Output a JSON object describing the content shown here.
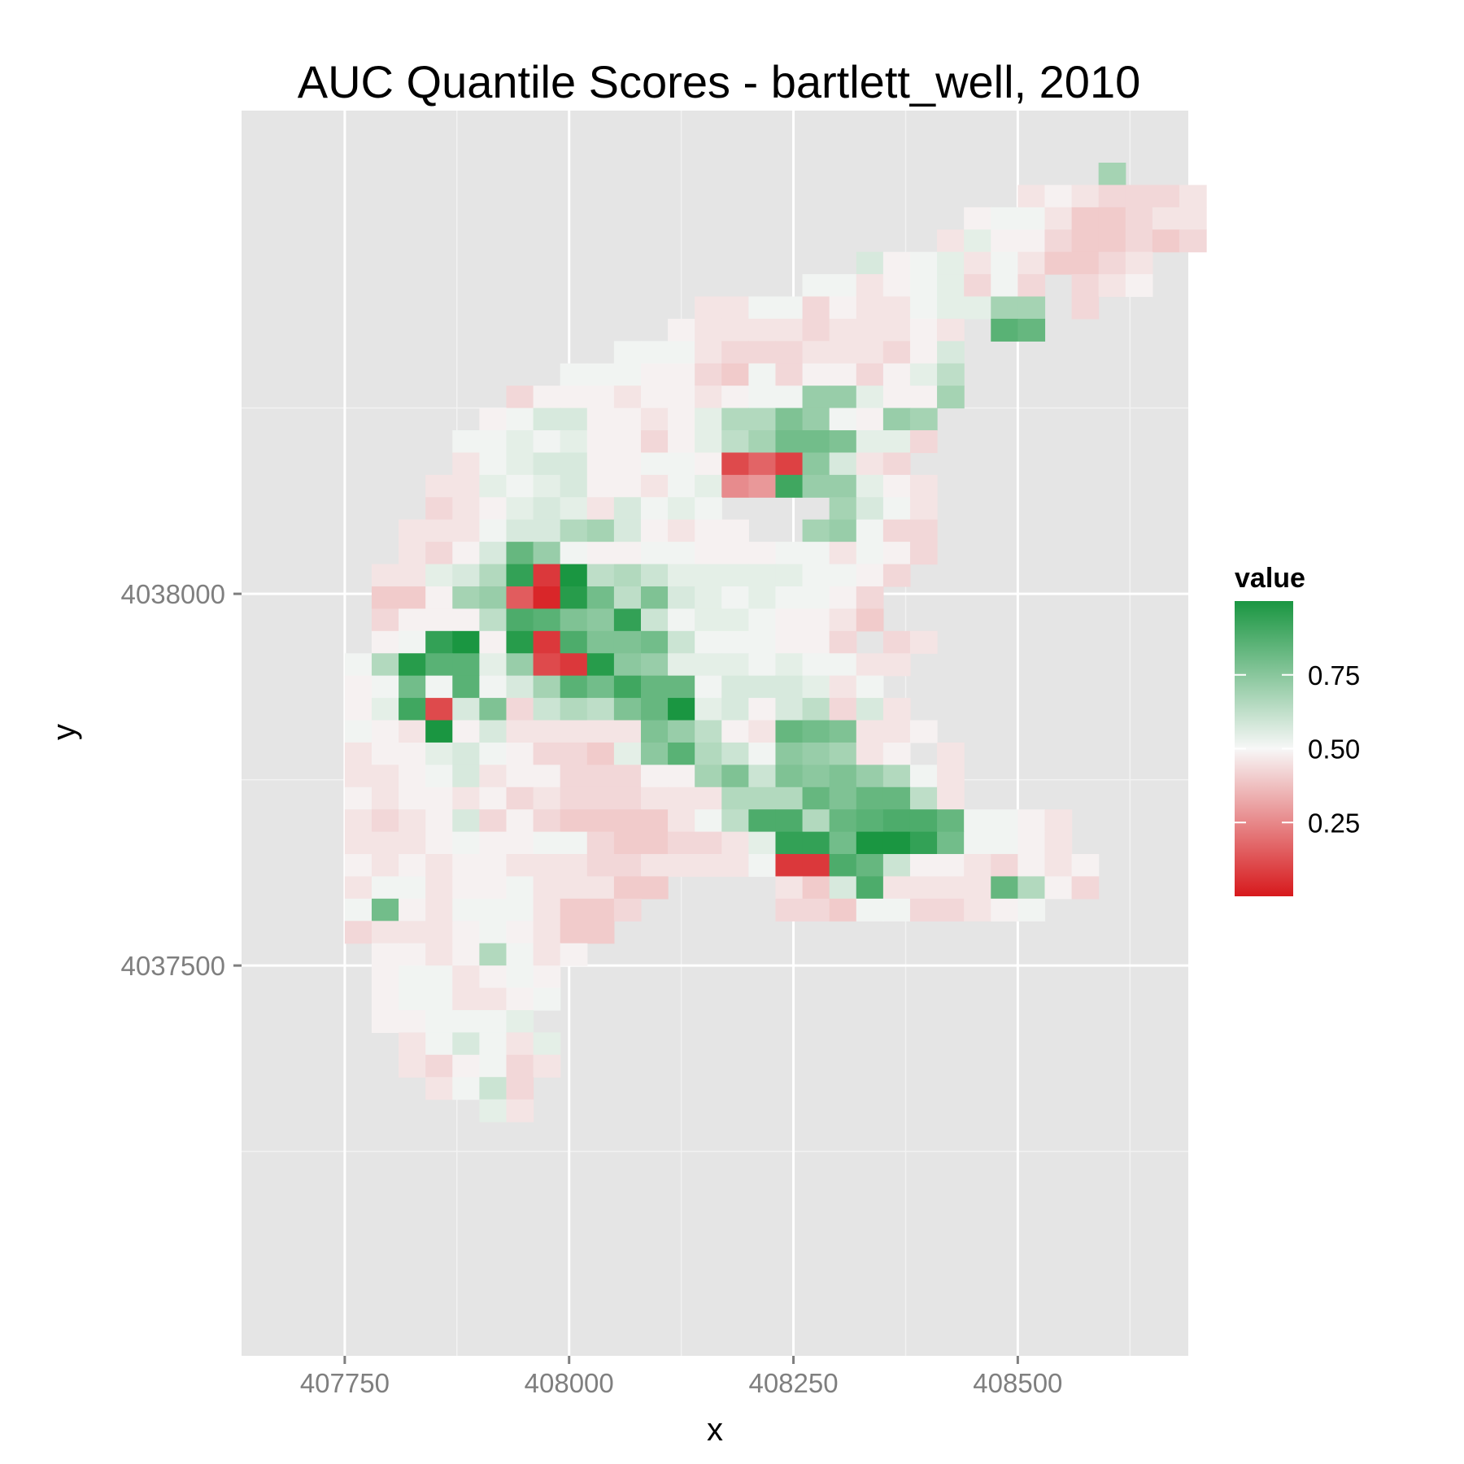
{
  "chart_data": {
    "type": "heatmap",
    "title": "AUC Quantile Scores - bartlett_well, 2010",
    "xlabel": "x",
    "ylabel": "y",
    "xlim": [
      407635,
      408690
    ],
    "ylim": [
      4036975,
      4038650
    ],
    "x_ticks": [
      407750,
      408000,
      408250,
      408500
    ],
    "x_tick_labels": [
      "407750",
      "408000",
      "408250",
      "408500"
    ],
    "x_minor": [
      407875,
      408125,
      408375,
      408625
    ],
    "y_ticks": [
      4037500,
      4038000
    ],
    "y_tick_labels": [
      "4037500",
      "4038000"
    ],
    "y_minor": [
      4037250,
      4037750,
      4038250
    ],
    "grid": true,
    "cell_size": 30,
    "x0": 407705,
    "y0": 4038565,
    "legend": {
      "title": "value",
      "position": "right",
      "breaks": [
        0.75,
        0.5,
        0.25
      ],
      "break_labels": [
        "0.75",
        "0.50",
        "0.25"
      ],
      "range": [
        0,
        1
      ]
    },
    "colors": {
      "low": "#d7191c",
      "mid": "#f7f7f7",
      "high": "#1a9641",
      "panel": "#e5e5e5",
      "grid": "#ffffff"
    },
    "grid_rows": [
      "..............................O......",
      "...........................GHGFFFG...",
      ".........................HIIGEEFGG...",
      "........................GJHHFEEFEF...",
      ".....................KHIJGIGEEFG.....",
      "...................IIGHIJFIF.FGH.....",
      "...............GGIIFHGGIJJOO.F.......",
      "..............HGGGGFGGGHG.UT.........",
      "............IIIGFFFGGGFHK............",
      "..........IIIHHFEIFHHFHJM............",
      "........FHHHGHHGHIIPPJHHO............",
      ".......HIKKHHGHJNNRPIHPO.............",
      "......IIJIJHHFHJMOSSRJJF.............",
      "......GIJKKHHIIHcfbQKGF..............",
      ".....GGJIJKHHGIJ9AWPPJHG.............",
      ".....FGHJKJGKIJI....OKIG.............",
      "....GGGIKKNOKHGHH..OPIFF.............",
      "....GFHKTPIHHIIHHHIIGIHF.............",
      "...GGJKNXaZMNLJJJJJIIHF..............",
      "...EEHOPe1YSMRKJIJIIHF...............",
      "...FHHHMVURQXLIJJIHHGE...............",
      "...HIXZHYaVRRSLIIIHHF.FG.............",
      "..INYUUJPcaYQPJJJIJIIGG..............",
      "..HISIUIKOUSWTTIKKKJGI...............",
      "..HJWcKRFLNMRTZJKHKMFKG..............",
      "..IHGZHKGGGGGRPMHGTSRGGH.............",
      "..GHHJKIHFFEJQUNLIQPOGH.G............",
      "..GGHIKGHHFFFHHORLRQRPNIG............",
      "..HGHHGHFGFFFGGGNNNTRTTMG............",
      "..GFGHKFHFEEEEGIMVVNTUVVTIIHG........",
      "..GGGHIHHIIFEEFFGJXXSZZXSIIHG........",
      "..HGHGHHGGGFFGGGGIaaVTLHHGFHGH.......",
      "..GIIGHHIGGGEE....GEKVGGGGTNHF.......",
      "..ISHGIIIGEEF.....FFEIIFFGHI.........",
      "..FGGGHIHGEE.......................",
      "...HHGHNIGH..........................",
      "...HIIGHIH...........................",
      "...HIIGGHI...........................",
      "...HHIIIJ............................",
      "....GIKIGJ...........................",
      "....GFHIFG...........................",
      ".....GILF............................",
      ".......JG............................"
    ]
  }
}
